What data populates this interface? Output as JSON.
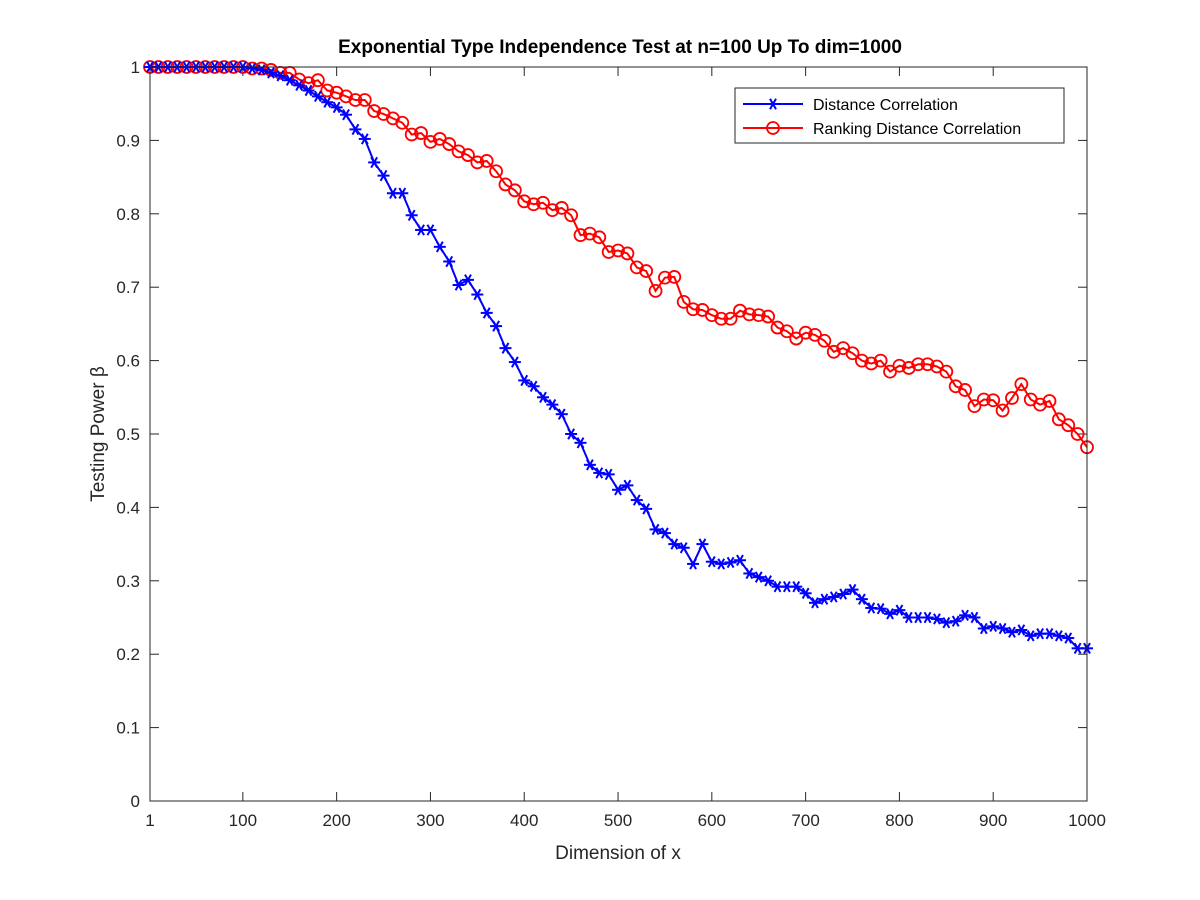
{
  "chart_data": {
    "type": "line",
    "title": "Exponential Type Independence Test at n=100 Up To dim=1000",
    "xlabel": "Dimension of x",
    "ylabel": "Testing Power β",
    "xlim": [
      1,
      1000
    ],
    "ylim": [
      0,
      1
    ],
    "xticks": [
      1,
      100,
      200,
      300,
      400,
      500,
      600,
      700,
      800,
      900,
      1000
    ],
    "yticks": [
      0,
      0.1,
      0.2,
      0.3,
      0.4,
      0.5,
      0.6,
      0.7,
      0.8,
      0.9,
      1
    ],
    "ytick_labels": [
      "0",
      "0.1",
      "0.2",
      "0.3",
      "0.4",
      "0.5",
      "0.6",
      "0.7",
      "0.8",
      "0.9",
      "1"
    ],
    "grid": false,
    "legend_position": "top-right",
    "x": [
      1,
      10,
      20,
      30,
      40,
      50,
      60,
      70,
      80,
      90,
      100,
      110,
      120,
      130,
      140,
      150,
      160,
      170,
      180,
      190,
      200,
      210,
      220,
      230,
      240,
      250,
      260,
      270,
      280,
      290,
      300,
      310,
      320,
      330,
      340,
      350,
      360,
      370,
      380,
      390,
      400,
      410,
      420,
      430,
      440,
      450,
      460,
      470,
      480,
      490,
      500,
      510,
      520,
      530,
      540,
      550,
      560,
      570,
      580,
      590,
      600,
      610,
      620,
      630,
      640,
      650,
      660,
      670,
      680,
      690,
      700,
      710,
      720,
      730,
      740,
      750,
      760,
      770,
      780,
      790,
      800,
      810,
      820,
      830,
      840,
      850,
      860,
      870,
      880,
      890,
      900,
      910,
      920,
      930,
      940,
      950,
      960,
      970,
      980,
      990,
      1000
    ],
    "series": [
      {
        "name": "Distance Correlation",
        "color": "#0000ff",
        "marker": "asterisk",
        "values": [
          1,
          1,
          1,
          1,
          1,
          1,
          1,
          1,
          1,
          1,
          1,
          0.998,
          0.996,
          0.992,
          0.988,
          0.982,
          0.975,
          0.968,
          0.96,
          0.952,
          0.945,
          0.935,
          0.915,
          0.902,
          0.87,
          0.852,
          0.828,
          0.828,
          0.798,
          0.778,
          0.778,
          0.755,
          0.735,
          0.703,
          0.71,
          0.69,
          0.665,
          0.647,
          0.617,
          0.598,
          0.573,
          0.565,
          0.55,
          0.54,
          0.527,
          0.5,
          0.488,
          0.458,
          0.447,
          0.445,
          0.424,
          0.43,
          0.41,
          0.398,
          0.37,
          0.365,
          0.35,
          0.345,
          0.323,
          0.35,
          0.326,
          0.323,
          0.325,
          0.328,
          0.31,
          0.305,
          0.3,
          0.292,
          0.292,
          0.292,
          0.283,
          0.27,
          0.275,
          0.278,
          0.282,
          0.288,
          0.275,
          0.263,
          0.262,
          0.255,
          0.26,
          0.25,
          0.25,
          0.25,
          0.248,
          0.243,
          0.245,
          0.253,
          0.25,
          0.235,
          0.238,
          0.235,
          0.23,
          0.233,
          0.225,
          0.228,
          0.228,
          0.225,
          0.222,
          0.208,
          0.208
        ]
      },
      {
        "name": "Ranking Distance Correlation",
        "color": "#ff0000",
        "marker": "circle",
        "values": [
          1,
          1,
          1,
          1,
          1,
          1,
          1,
          1,
          1,
          1,
          1,
          0.998,
          0.998,
          0.996,
          0.992,
          0.992,
          0.983,
          0.978,
          0.982,
          0.968,
          0.965,
          0.96,
          0.955,
          0.955,
          0.94,
          0.936,
          0.93,
          0.924,
          0.908,
          0.91,
          0.898,
          0.902,
          0.895,
          0.885,
          0.88,
          0.87,
          0.872,
          0.858,
          0.84,
          0.832,
          0.817,
          0.813,
          0.815,
          0.805,
          0.808,
          0.798,
          0.771,
          0.773,
          0.768,
          0.748,
          0.75,
          0.746,
          0.727,
          0.722,
          0.695,
          0.713,
          0.714,
          0.68,
          0.67,
          0.669,
          0.662,
          0.657,
          0.657,
          0.668,
          0.663,
          0.662,
          0.66,
          0.645,
          0.64,
          0.63,
          0.638,
          0.635,
          0.627,
          0.612,
          0.617,
          0.61,
          0.6,
          0.596,
          0.6,
          0.585,
          0.593,
          0.59,
          0.595,
          0.595,
          0.592,
          0.585,
          0.565,
          0.56,
          0.538,
          0.547,
          0.546,
          0.532,
          0.549,
          0.568,
          0.547,
          0.54,
          0.545,
          0.52,
          0.512,
          0.5,
          0.482
        ]
      }
    ]
  }
}
